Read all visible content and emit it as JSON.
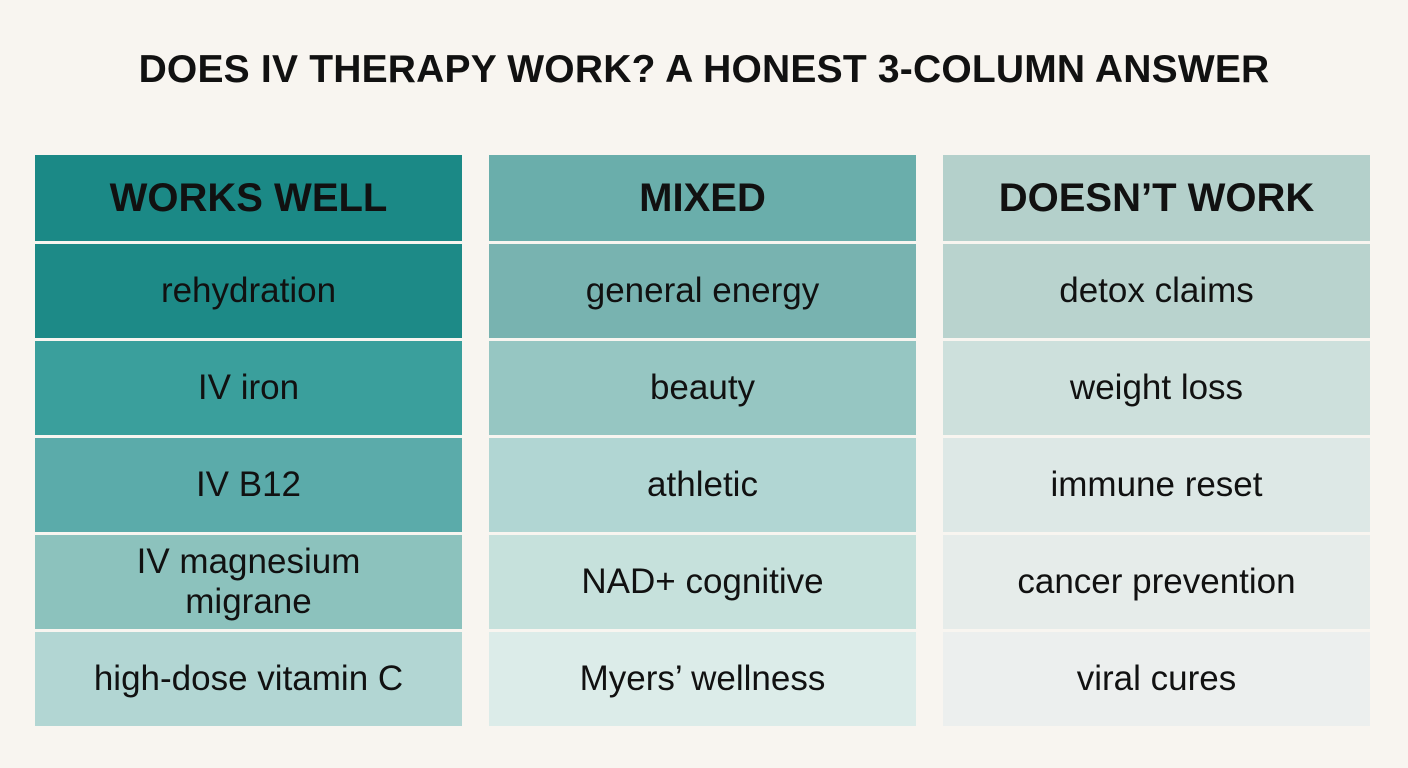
{
  "title": "DOES IV THERAPY WORK? A HONEST 3-COLUMN ANSWER",
  "columns": [
    {
      "header": "WORKS WELL",
      "items": [
        "rehydration",
        "IV iron",
        "IV B12",
        "IV magnesium migrane",
        "high-dose vitamin C"
      ]
    },
    {
      "header": "MIXED",
      "items": [
        "general energy",
        "beauty",
        "athletic",
        "NAD+ cognitive",
        "Myers’ wellness"
      ]
    },
    {
      "header": "DOESN’T WORK",
      "items": [
        "detox claims",
        "weight loss",
        "immune reset",
        "cancer prevention",
        "viral cures"
      ]
    }
  ]
}
